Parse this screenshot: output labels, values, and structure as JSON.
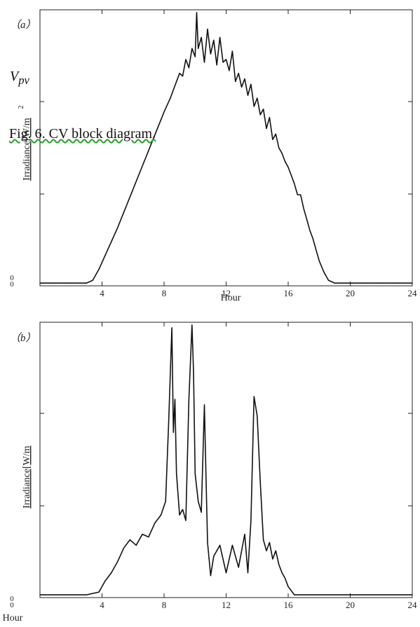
{
  "chart_data": [
    {
      "type": "line",
      "panel_label": "（a）",
      "xlabel": "Hour",
      "ylabel": "Irradiance[W/m",
      "ylabel_sup": "2",
      "x_ticks": [
        "4",
        "8",
        "12",
        "16",
        "20",
        "24"
      ],
      "y_ticks": [
        "0",
        "0"
      ],
      "xlim": [
        0,
        24
      ],
      "ylim": [
        0,
        1
      ],
      "grid": false,
      "series": [
        {
          "x": [
            0,
            1,
            2,
            3,
            3.4,
            3.8,
            4.2,
            4.6,
            5,
            5.5,
            6,
            6.5,
            7,
            7.5,
            8,
            8.4,
            8.8,
            9,
            9.2,
            9.4,
            9.6,
            9.8,
            10,
            10.1,
            10.2,
            10.4,
            10.6,
            10.8,
            11,
            11.2,
            11.4,
            11.6,
            11.8,
            12,
            12.2,
            12.4,
            12.6,
            12.8,
            13,
            13.2,
            13.4,
            13.6,
            13.8,
            14,
            14.2,
            14.4,
            14.6,
            14.8,
            15,
            15.2,
            15.4,
            15.6,
            15.8,
            16,
            16.2,
            16.4,
            16.6,
            16.8,
            17,
            17.2,
            17.4,
            17.6,
            17.8,
            18,
            18.3,
            18.6,
            19,
            20,
            21,
            22,
            23,
            24
          ],
          "y": [
            0.01,
            0.01,
            0.01,
            0.01,
            0.02,
            0.06,
            0.11,
            0.16,
            0.21,
            0.28,
            0.35,
            0.42,
            0.49,
            0.56,
            0.63,
            0.68,
            0.74,
            0.77,
            0.76,
            0.82,
            0.79,
            0.86,
            0.83,
            0.99,
            0.86,
            0.9,
            0.81,
            0.93,
            0.84,
            0.89,
            0.8,
            0.9,
            0.81,
            0.82,
            0.78,
            0.85,
            0.74,
            0.77,
            0.72,
            0.75,
            0.69,
            0.73,
            0.65,
            0.68,
            0.62,
            0.64,
            0.57,
            0.61,
            0.53,
            0.55,
            0.5,
            0.48,
            0.45,
            0.43,
            0.4,
            0.37,
            0.33,
            0.33,
            0.28,
            0.24,
            0.2,
            0.17,
            0.13,
            0.09,
            0.05,
            0.02,
            0.01,
            0.01,
            0.01,
            0.01,
            0.01,
            0.01
          ]
        }
      ]
    },
    {
      "type": "line",
      "panel_label": "（b）",
      "xlabel": "Hour",
      "ylabel": "Irradiance[W/m",
      "x_ticks": [
        "4",
        "8",
        "12",
        "16",
        "20",
        "24"
      ],
      "y_ticks": [
        "0",
        "0"
      ],
      "xlim": [
        0,
        24
      ],
      "ylim": [
        0,
        1
      ],
      "grid": false,
      "series": [
        {
          "x": [
            0,
            1,
            2,
            3,
            3.8,
            4.2,
            4.6,
            5,
            5.4,
            5.8,
            6.2,
            6.6,
            7,
            7.4,
            7.8,
            8.1,
            8.3,
            8.5,
            8.6,
            8.7,
            8.8,
            9,
            9.2,
            9.4,
            9.6,
            9.8,
            9.9,
            10,
            10.2,
            10.4,
            10.6,
            10.7,
            10.8,
            11,
            11.2,
            11.6,
            12,
            12.4,
            12.8,
            13.2,
            13.4,
            13.6,
            13.8,
            14,
            14.2,
            14.4,
            14.6,
            14.8,
            15,
            15.2,
            15.4,
            15.6,
            15.8,
            16,
            16.4,
            17,
            18,
            20,
            22,
            24
          ],
          "y": [
            0.01,
            0.01,
            0.01,
            0.01,
            0.02,
            0.06,
            0.09,
            0.13,
            0.18,
            0.21,
            0.19,
            0.23,
            0.22,
            0.27,
            0.3,
            0.35,
            0.64,
            0.98,
            0.6,
            0.72,
            0.45,
            0.3,
            0.32,
            0.28,
            0.72,
            0.99,
            0.82,
            0.45,
            0.35,
            0.31,
            0.7,
            0.45,
            0.2,
            0.08,
            0.15,
            0.19,
            0.09,
            0.19,
            0.11,
            0.23,
            0.09,
            0.28,
            0.73,
            0.66,
            0.42,
            0.21,
            0.17,
            0.2,
            0.14,
            0.17,
            0.12,
            0.09,
            0.07,
            0.04,
            0.01,
            0.01,
            0.01,
            0.01,
            0.01,
            0.01
          ]
        }
      ]
    }
  ],
  "overlay": {
    "vpv_base": "V",
    "vpv_sub": "pv",
    "caption": "Fig. 6. CV block diagram."
  }
}
